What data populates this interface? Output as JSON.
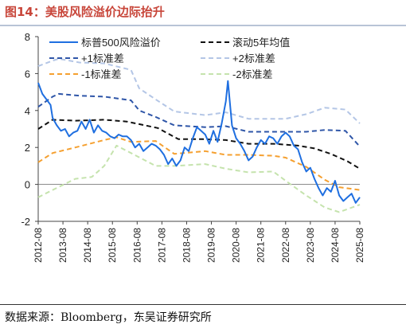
{
  "header": {
    "title": "图14：美股风险溢价边际抬升"
  },
  "footer": {
    "source": "数据来源：Bloomberg，东吴证券研究所"
  },
  "chart_data": {
    "type": "line",
    "title": "",
    "xlabel": "",
    "ylabel": "",
    "ylim": [
      -2,
      8
    ],
    "yticks": [
      -2,
      0,
      2,
      4,
      6,
      8
    ],
    "xlim": [
      "2012-08",
      "2025-08"
    ],
    "xticks": [
      "2012-08",
      "2013-08",
      "2014-08",
      "2015-08",
      "2016-08",
      "2017-08",
      "2018-08",
      "2019-08",
      "2020-08",
      "2021-08",
      "2022-08",
      "2023-08",
      "2024-08",
      "2025-08"
    ],
    "grid": false,
    "legend_position": "top",
    "colors": {
      "erp": "#1f6fe0",
      "mean": "#111111",
      "plus1": "#2f56a8",
      "plus2": "#b4c6e6",
      "minus1": "#f5a030",
      "minus2": "#c5e3ad"
    },
    "series": [
      {
        "name": "标普500风险溢价",
        "key": "erp",
        "x": [
          "2012-08",
          "2012-10",
          "2012-12",
          "2013-02",
          "2013-03",
          "2013-05",
          "2013-07",
          "2013-09",
          "2013-11",
          "2014-01",
          "2014-03",
          "2014-05",
          "2014-07",
          "2014-09",
          "2014-11",
          "2015-01",
          "2015-03",
          "2015-05",
          "2015-07",
          "2015-09",
          "2015-11",
          "2016-01",
          "2016-03",
          "2016-05",
          "2016-07",
          "2016-09",
          "2016-11",
          "2017-01",
          "2017-03",
          "2017-05",
          "2017-07",
          "2017-09",
          "2017-11",
          "2018-01",
          "2018-03",
          "2018-05",
          "2018-07",
          "2018-09",
          "2018-11",
          "2019-01",
          "2019-03",
          "2019-05",
          "2019-07",
          "2019-09",
          "2019-11",
          "2020-01",
          "2020-03",
          "2020-04",
          "2020-06",
          "2020-08",
          "2020-10",
          "2020-12",
          "2021-02",
          "2021-04",
          "2021-06",
          "2021-08",
          "2021-10",
          "2021-12",
          "2022-02",
          "2022-04",
          "2022-06",
          "2022-08",
          "2022-10",
          "2022-12",
          "2023-02",
          "2023-04",
          "2023-06",
          "2023-08",
          "2023-10",
          "2023-12",
          "2024-02",
          "2024-04",
          "2024-06",
          "2024-08",
          "2024-10",
          "2024-12",
          "2025-02",
          "2025-04",
          "2025-06",
          "2025-08"
        ],
        "y": [
          5.5,
          4.9,
          4.6,
          4.3,
          3.6,
          3.2,
          2.9,
          3.0,
          2.6,
          2.8,
          2.9,
          3.4,
          3.0,
          3.5,
          2.8,
          3.2,
          2.9,
          2.8,
          2.6,
          2.5,
          2.7,
          2.6,
          2.6,
          2.4,
          2.0,
          2.2,
          1.8,
          2.0,
          2.2,
          2.1,
          1.9,
          1.6,
          1.1,
          1.4,
          1.0,
          1.3,
          2.0,
          1.8,
          2.5,
          3.1,
          2.9,
          2.7,
          2.2,
          2.9,
          2.3,
          3.3,
          4.5,
          5.6,
          3.2,
          2.5,
          2.2,
          1.8,
          1.3,
          1.5,
          2.0,
          2.4,
          2.2,
          2.6,
          2.5,
          2.2,
          2.6,
          2.8,
          2.6,
          2.1,
          1.9,
          1.2,
          0.7,
          0.9,
          0.3,
          -0.2,
          -0.6,
          -0.2,
          -0.4,
          0.2,
          -0.6,
          -0.9,
          -0.7,
          -0.5,
          -1.0,
          -0.7
        ]
      },
      {
        "name": "滚动5年均值",
        "key": "mean",
        "x": [
          "2012-08",
          "2013-03",
          "2014-02",
          "2015-04",
          "2016-03",
          "2017-06",
          "2018-04",
          "2019-04",
          "2020-03",
          "2021-02",
          "2022-02",
          "2022-08",
          "2023-02",
          "2023-10",
          "2024-06",
          "2025-02",
          "2025-08"
        ],
        "y": [
          3.0,
          3.5,
          3.45,
          3.5,
          3.4,
          3.05,
          2.45,
          2.45,
          2.4,
          2.2,
          2.2,
          2.15,
          2.1,
          1.95,
          1.65,
          1.25,
          0.85
        ]
      },
      {
        "name": "+1标准差",
        "key": "plus1",
        "x": [
          "2012-08",
          "2013-03",
          "2013-06",
          "2014-04",
          "2015-04",
          "2016-05",
          "2016-09",
          "2017-05",
          "2018-02",
          "2019-05",
          "2020-03",
          "2021-02",
          "2022-08",
          "2023-06",
          "2024-03",
          "2025-01",
          "2025-08"
        ],
        "y": [
          4.2,
          4.75,
          4.9,
          4.8,
          4.75,
          4.55,
          4.0,
          3.65,
          3.2,
          3.1,
          3.15,
          2.85,
          2.85,
          2.85,
          2.95,
          2.9,
          2.05
        ]
      },
      {
        "name": "+2标准差",
        "key": "plus2",
        "x": [
          "2012-08",
          "2013-03",
          "2013-06",
          "2014-04",
          "2015-04",
          "2016-05",
          "2016-09",
          "2017-05",
          "2018-02",
          "2019-05",
          "2020-03",
          "2021-02",
          "2022-08",
          "2023-06",
          "2024-03",
          "2025-01",
          "2025-08"
        ],
        "y": [
          6.4,
          6.7,
          6.8,
          6.6,
          6.55,
          6.2,
          5.2,
          4.6,
          3.95,
          3.75,
          3.9,
          3.55,
          3.55,
          3.8,
          4.15,
          4.05,
          3.3
        ]
      },
      {
        "name": "-1标准差",
        "key": "minus1",
        "x": [
          "2012-08",
          "2013-03",
          "2014-02",
          "2015-04",
          "2015-10",
          "2016-05",
          "2017-05",
          "2018-02",
          "2019-05",
          "2020-03",
          "2021-02",
          "2022-02",
          "2022-08",
          "2023-06",
          "2024-03",
          "2024-10",
          "2025-08"
        ],
        "y": [
          1.2,
          1.7,
          2.0,
          2.4,
          2.55,
          2.3,
          2.35,
          1.65,
          1.8,
          1.6,
          1.6,
          1.55,
          1.45,
          0.95,
          0.25,
          -0.15,
          -0.3
        ]
      },
      {
        "name": "-2标准差",
        "key": "minus2",
        "x": [
          "2012-08",
          "2013-03",
          "2014-02",
          "2014-10",
          "2015-04",
          "2015-10",
          "2016-05",
          "2017-05",
          "2018-02",
          "2019-05",
          "2020-03",
          "2021-02",
          "2022-02",
          "2022-08",
          "2023-06",
          "2024-03",
          "2024-10",
          "2025-08"
        ],
        "y": [
          -0.7,
          -0.3,
          0.3,
          0.4,
          1.0,
          2.1,
          1.7,
          1.0,
          1.0,
          1.1,
          0.85,
          0.65,
          0.7,
          0.2,
          -0.6,
          -1.25,
          -1.5,
          -1.1
        ]
      }
    ]
  }
}
